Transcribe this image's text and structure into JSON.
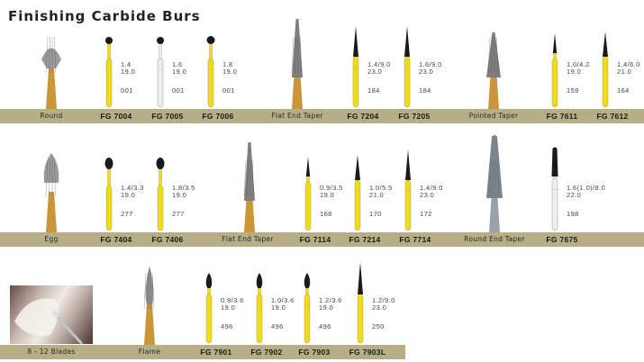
{
  "title": "Finishing Carbide Burs",
  "colors": {
    "band": "#b6ae86",
    "yellow_shank": "#f2dc10",
    "white_shank": "#eeeeee",
    "head": "#1a1a1a",
    "gold": "#c9963a"
  },
  "rows": [
    {
      "items": [
        {
          "kind": "photo",
          "label": "Round",
          "head": "round"
        },
        {
          "kind": "bur",
          "code": "FG 7004",
          "specs": [
            "1.4",
            "19.0",
            "001"
          ],
          "head": "ball",
          "shank": "yellow"
        },
        {
          "kind": "bur",
          "code": "FG 7005",
          "specs": [
            "1.6",
            "19.0",
            "001"
          ],
          "head": "ball",
          "shank": "white"
        },
        {
          "kind": "bur",
          "code": "FG 7006",
          "specs": [
            "1.8",
            "19.0",
            "001"
          ],
          "head": "ball-large",
          "shank": "yellow"
        },
        {
          "kind": "photo",
          "label": "Flat End Taper",
          "head": "flat-taper"
        },
        {
          "kind": "bur",
          "code": "FG 7204",
          "specs": [
            "1.4/9.0",
            "23.0",
            "184"
          ],
          "head": "taper-long",
          "shank": "yellow"
        },
        {
          "kind": "bur",
          "code": "FG 7205",
          "specs": [
            "1.6/9.0",
            "23.0",
            "184"
          ],
          "head": "taper-long",
          "shank": "yellow"
        },
        {
          "kind": "photo",
          "label": "Pointed Taper",
          "head": "pointed-taper"
        },
        {
          "kind": "bur",
          "code": "FG 7611",
          "specs": [
            "1.0/4.2",
            "19.0",
            "159"
          ],
          "head": "taper-short",
          "shank": "yellow"
        },
        {
          "kind": "bur",
          "code": "FG 7612",
          "specs": [
            "1.4/6.0",
            "21.0",
            "164"
          ],
          "head": "taper-mid",
          "shank": "yellow"
        }
      ]
    },
    {
      "items": [
        {
          "kind": "photo",
          "label": "Egg",
          "head": "egg"
        },
        {
          "kind": "bur",
          "code": "FG 7404",
          "specs": [
            "1.4/3.3",
            "19.0",
            "277"
          ],
          "head": "egg",
          "shank": "yellow"
        },
        {
          "kind": "bur",
          "code": "FG 7406",
          "specs": [
            "1.8/3.5",
            "19.0",
            "277"
          ],
          "head": "egg",
          "shank": "yellow"
        },
        {
          "kind": "photo",
          "label": "Flat End Taper",
          "head": "flat-taper-2"
        },
        {
          "kind": "bur",
          "code": "FG 7114",
          "specs": [
            "0.9/3.5",
            "19.0",
            "168"
          ],
          "head": "taper-short",
          "shank": "yellow"
        },
        {
          "kind": "bur",
          "code": "FG 7214",
          "specs": [
            "1.0/5.5",
            "21.0",
            "170"
          ],
          "head": "taper-mid",
          "shank": "yellow"
        },
        {
          "kind": "bur",
          "code": "FG 7714",
          "specs": [
            "1.4/9.0",
            "23.0",
            "172"
          ],
          "head": "taper-long",
          "shank": "yellow"
        },
        {
          "kind": "photo",
          "label": "Round End Taper",
          "head": "round-end-taper"
        },
        {
          "kind": "bur",
          "code": "FG 7675",
          "specs": [
            "1.6(1.0)/8.0",
            "22.0",
            "198"
          ],
          "head": "cylinder",
          "shank": "white"
        }
      ]
    },
    {
      "items": [
        {
          "kind": "photo",
          "label": "8 - 12 Blades",
          "head": "clinical-photo"
        },
        {
          "kind": "photo",
          "label": "Flame",
          "head": "flame"
        },
        {
          "kind": "bur",
          "code": "FG 7901",
          "specs": [
            "0.9/3.6",
            "19.0",
            "496"
          ],
          "head": "flame",
          "shank": "yellow"
        },
        {
          "kind": "bur",
          "code": "FG 7902",
          "specs": [
            "1.0/3.6",
            "19.0",
            "496"
          ],
          "head": "flame",
          "shank": "yellow"
        },
        {
          "kind": "bur",
          "code": "FG 7903",
          "specs": [
            "1.2/3.6",
            "19.0",
            "496"
          ],
          "head": "flame",
          "shank": "yellow"
        },
        {
          "kind": "bur",
          "code": "FG 7903L",
          "specs": [
            "1.2/9.0",
            "23.0",
            "250"
          ],
          "head": "taper-xl",
          "shank": "yellow"
        }
      ]
    }
  ]
}
